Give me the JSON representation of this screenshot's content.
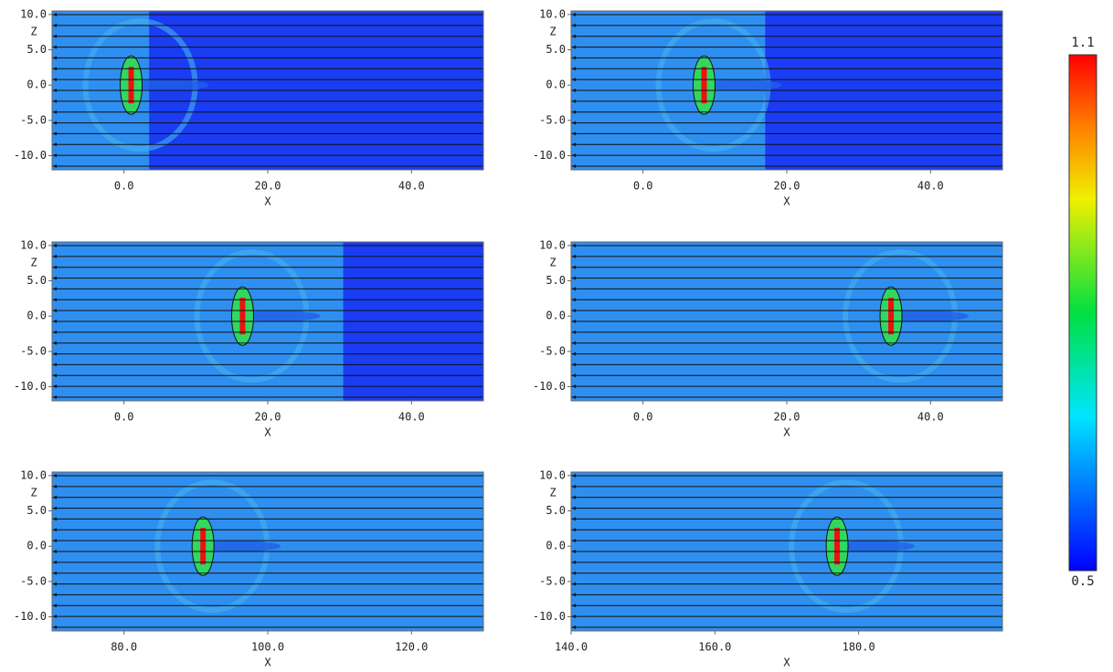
{
  "colorbar": {
    "min": 0.5,
    "max": 1.1
  },
  "chart_data": [
    {
      "type": "heatmap",
      "xlabel": "X",
      "ylabel": "Z",
      "xlim": [
        -10,
        50
      ],
      "ylim": [
        -12,
        10.5
      ],
      "xticks": [
        {
          "value": 0,
          "label": "0.0"
        },
        {
          "value": 20,
          "label": "20.0"
        },
        {
          "value": 40,
          "label": "40.0"
        }
      ],
      "yticks": [
        {
          "value": 10,
          "label": "10.0"
        },
        {
          "value": 5,
          "label": "5.0"
        },
        {
          "value": 0,
          "label": "0.0"
        },
        {
          "value": -5,
          "label": "-5.0"
        },
        {
          "value": -10,
          "label": "-10.0"
        }
      ],
      "dark_xlim": [
        3.5,
        50
      ],
      "blob_x": 1
    },
    {
      "type": "heatmap",
      "xlabel": "X",
      "ylabel": "Z",
      "xlim": [
        -10,
        50
      ],
      "ylim": [
        -12,
        10.5
      ],
      "xticks": [
        {
          "value": 0,
          "label": "0.0"
        },
        {
          "value": 20,
          "label": "20.0"
        },
        {
          "value": 40,
          "label": "40.0"
        }
      ],
      "yticks": [
        {
          "value": 10,
          "label": "10.0"
        },
        {
          "value": 5,
          "label": "5.0"
        },
        {
          "value": 0,
          "label": "0.0"
        },
        {
          "value": -5,
          "label": "-5.0"
        },
        {
          "value": -10,
          "label": "-10.0"
        }
      ],
      "dark_xlim": [
        17,
        50
      ],
      "blob_x": 8.5
    },
    {
      "type": "heatmap",
      "xlabel": "X",
      "ylabel": "Z",
      "xlim": [
        -10,
        50
      ],
      "ylim": [
        -12,
        10.5
      ],
      "xticks": [
        {
          "value": 0,
          "label": "0.0"
        },
        {
          "value": 20,
          "label": "20.0"
        },
        {
          "value": 40,
          "label": "40.0"
        }
      ],
      "yticks": [
        {
          "value": 10,
          "label": "10.0"
        },
        {
          "value": 5,
          "label": "5.0"
        },
        {
          "value": 0,
          "label": "0.0"
        },
        {
          "value": -5,
          "label": "-5.0"
        },
        {
          "value": -10,
          "label": "-10.0"
        }
      ],
      "dark_xlim": [
        30.5,
        50
      ],
      "blob_x": 16.5
    },
    {
      "type": "heatmap",
      "xlabel": "X",
      "ylabel": "Z",
      "xlim": [
        -10,
        50
      ],
      "ylim": [
        -12,
        10.5
      ],
      "xticks": [
        {
          "value": 0,
          "label": "0.0"
        },
        {
          "value": 20,
          "label": "20.0"
        },
        {
          "value": 40,
          "label": "40.0"
        }
      ],
      "yticks": [
        {
          "value": 10,
          "label": "10.0"
        },
        {
          "value": 5,
          "label": "5.0"
        },
        {
          "value": 0,
          "label": "0.0"
        },
        {
          "value": -5,
          "label": "-5.0"
        },
        {
          "value": -10,
          "label": "-10.0"
        }
      ],
      "blob_x": 34.5
    },
    {
      "type": "heatmap",
      "xlabel": "X",
      "ylabel": "Z",
      "xlim": [
        70,
        130
      ],
      "ylim": [
        -12,
        10.5
      ],
      "xticks": [
        {
          "value": 80,
          "label": "80.0"
        },
        {
          "value": 100,
          "label": "100.0"
        },
        {
          "value": 120,
          "label": "120.0"
        }
      ],
      "yticks": [
        {
          "value": 10,
          "label": "10.0"
        },
        {
          "value": 5,
          "label": "5.0"
        },
        {
          "value": 0,
          "label": "0.0"
        },
        {
          "value": -5,
          "label": "-5.0"
        },
        {
          "value": -10,
          "label": "-10.0"
        }
      ],
      "blob_x": 91
    },
    {
      "type": "heatmap",
      "xlabel": "X",
      "ylabel": "Z",
      "xlim": [
        140,
        200
      ],
      "ylim": [
        -12,
        10.5
      ],
      "xticks": [
        {
          "value": 140,
          "label": "140.0"
        },
        {
          "value": 160,
          "label": "160.0"
        },
        {
          "value": 180,
          "label": "180.0"
        }
      ],
      "yticks": [
        {
          "value": 10,
          "label": "10.0"
        },
        {
          "value": 5,
          "label": "5.0"
        },
        {
          "value": 0,
          "label": "0.0"
        },
        {
          "value": -5,
          "label": "-5.0"
        },
        {
          "value": -10,
          "label": "-10.0"
        }
      ],
      "blob_x": 177
    }
  ]
}
